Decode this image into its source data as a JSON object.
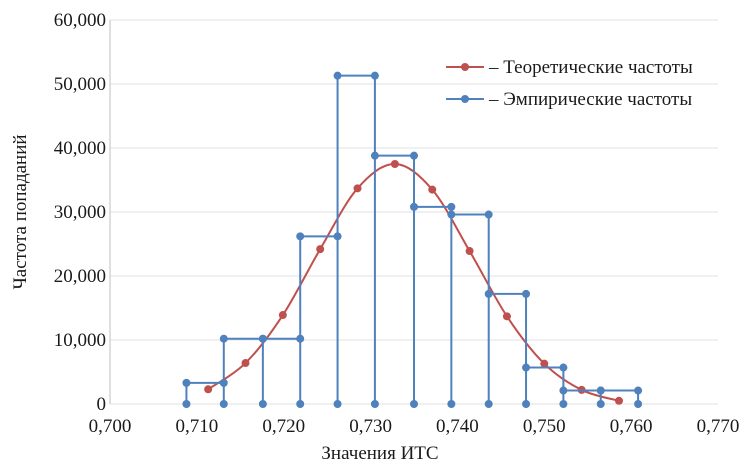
{
  "chart_data": {
    "type": "line",
    "title": "",
    "xlabel": "Значения ИТС",
    "ylabel": "Частота попаданий",
    "xlim": [
      0.7,
      0.77
    ],
    "ylim": [
      0,
      60000
    ],
    "x_ticks": [
      "0,700",
      "0,710",
      "0,720",
      "0,730",
      "0,740",
      "0,750",
      "0,760",
      "0,770"
    ],
    "y_ticks": [
      "0",
      "10,000",
      "20,000",
      "30,000",
      "40,000",
      "50,000",
      "60,000"
    ],
    "grid": "horizontal",
    "legend_position": "top-right",
    "series": [
      {
        "name": "– Теоретические частоты",
        "color": "#c0504d",
        "style": "smooth",
        "points": [
          [
            0.7113,
            2300
          ],
          [
            0.7156,
            6400
          ],
          [
            0.7199,
            13900
          ],
          [
            0.7242,
            24200
          ],
          [
            0.7285,
            33700
          ],
          [
            0.7328,
            37500
          ],
          [
            0.7371,
            33500
          ],
          [
            0.7414,
            23900
          ],
          [
            0.7457,
            13700
          ],
          [
            0.75,
            6300
          ],
          [
            0.7543,
            2200
          ],
          [
            0.7586,
            500
          ]
        ]
      },
      {
        "name": "– Эмпирические частоты",
        "color": "#4f81bd",
        "style": "histogram",
        "points": [
          [
            0.7088,
            0
          ],
          [
            0.7088,
            3300
          ],
          [
            0.7131,
            3300
          ],
          [
            0.7131,
            0
          ],
          [
            0.7131,
            10200
          ],
          [
            0.7176,
            10200
          ],
          [
            0.7176,
            0
          ],
          [
            0.7176,
            10200
          ],
          [
            0.7219,
            10200
          ],
          [
            0.7219,
            0
          ],
          [
            0.7219,
            26200
          ],
          [
            0.7262,
            26200
          ],
          [
            0.7262,
            0
          ],
          [
            0.7262,
            51300
          ],
          [
            0.7305,
            51300
          ],
          [
            0.7305,
            0
          ],
          [
            0.7305,
            38800
          ],
          [
            0.735,
            38800
          ],
          [
            0.735,
            0
          ],
          [
            0.735,
            30800
          ],
          [
            0.7393,
            30800
          ],
          [
            0.7393,
            0
          ],
          [
            0.7393,
            29600
          ],
          [
            0.7436,
            29600
          ],
          [
            0.7436,
            0
          ],
          [
            0.7436,
            17200
          ],
          [
            0.7479,
            17200
          ],
          [
            0.7479,
            0
          ],
          [
            0.7479,
            5700
          ],
          [
            0.7522,
            5700
          ],
          [
            0.7522,
            0
          ],
          [
            0.7522,
            2100
          ],
          [
            0.7565,
            2100
          ],
          [
            0.7565,
            0
          ],
          [
            0.7565,
            2100
          ],
          [
            0.7608,
            2100
          ],
          [
            0.7608,
            0
          ]
        ]
      }
    ]
  }
}
